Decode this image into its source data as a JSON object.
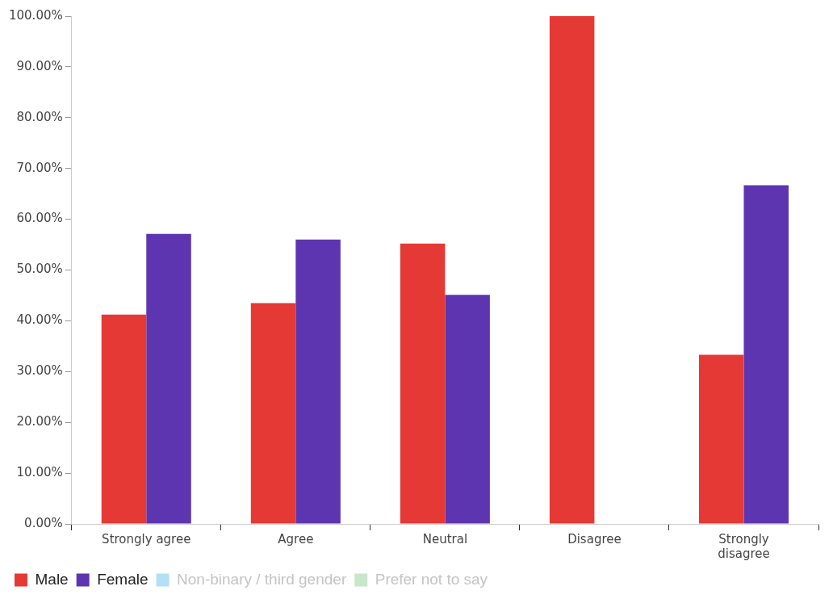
{
  "chart_data": {
    "type": "bar",
    "categories": [
      "Strongly agree",
      "Agree",
      "Neutral",
      "Disagree",
      "Strongly disagree"
    ],
    "series": [
      {
        "name": "Male",
        "color": "#e53935",
        "values": [
          41.2,
          43.5,
          55.2,
          100,
          33.3
        ]
      },
      {
        "name": "Female",
        "color": "#5e35b1",
        "values": [
          57.1,
          56.0,
          45.1,
          0,
          66.7
        ]
      },
      {
        "name": "Non-binary / third gender",
        "color": "#b3e0f7",
        "values": [
          null,
          null,
          null,
          null,
          null
        ]
      },
      {
        "name": "Prefer not to say",
        "color": "#c8e6c9",
        "values": [
          null,
          null,
          null,
          null,
          null
        ]
      }
    ],
    "ylim": [
      0,
      100
    ],
    "yticks": [
      {
        "value": 0,
        "label": "0.00%"
      },
      {
        "value": 10,
        "label": "10.00%"
      },
      {
        "value": 20,
        "label": "20.00%"
      },
      {
        "value": 30,
        "label": "30.00%"
      },
      {
        "value": 40,
        "label": "40.00%"
      },
      {
        "value": 50,
        "label": "50.00%"
      },
      {
        "value": 60,
        "label": "60.00%"
      },
      {
        "value": 70,
        "label": "70.00%"
      },
      {
        "value": 80,
        "label": "80.00%"
      },
      {
        "value": 90,
        "label": "90.00%"
      },
      {
        "value": 100,
        "label": "100.00%"
      }
    ],
    "grid": false,
    "legend": "bottom"
  }
}
